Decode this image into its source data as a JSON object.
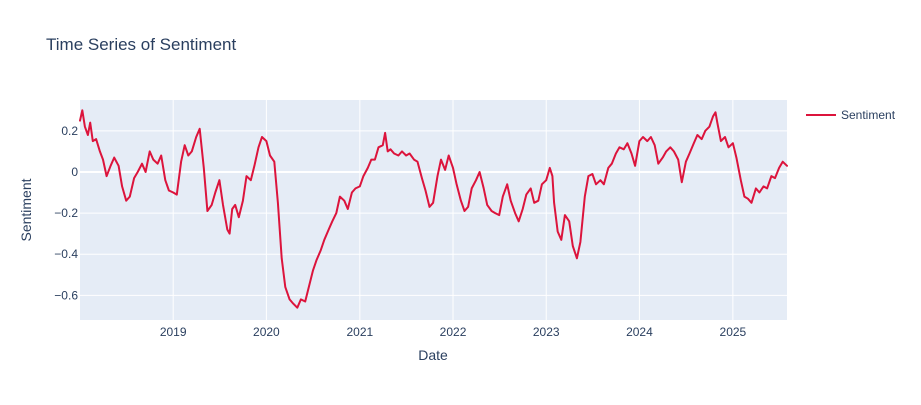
{
  "chart_data": {
    "type": "line",
    "title": "Time Series of Sentiment",
    "xlabel": "Date",
    "ylabel": "Sentiment",
    "xlim": [
      "2018-01-01",
      "2025-08-01"
    ],
    "ylim": [
      -0.72,
      0.35
    ],
    "x_ticks": [
      "2019-01-01",
      "2020-01-01",
      "2021-01-01",
      "2022-01-01",
      "2023-01-01",
      "2024-01-01",
      "2025-01-01"
    ],
    "x_tick_labels": [
      "2019",
      "2020",
      "2021",
      "2022",
      "2023",
      "2024",
      "2025"
    ],
    "y_ticks": [
      0.2,
      0,
      -0.2,
      -0.4,
      -0.6
    ],
    "y_tick_labels": [
      "0.2",
      "0",
      "−0.2",
      "−0.4",
      "−0.6"
    ],
    "grid": true,
    "legend": "right",
    "plot_bg": "#E5ECF6",
    "series": [
      {
        "name": "Sentiment",
        "color": "#DC143C",
        "points": [
          [
            "2018-01-01",
            0.25
          ],
          [
            "2018-01-10",
            0.3
          ],
          [
            "2018-01-20",
            0.22
          ],
          [
            "2018-02-01",
            0.18
          ],
          [
            "2018-02-10",
            0.24
          ],
          [
            "2018-02-20",
            0.15
          ],
          [
            "2018-03-05",
            0.16
          ],
          [
            "2018-03-20",
            0.1
          ],
          [
            "2018-04-01",
            0.06
          ],
          [
            "2018-04-15",
            -0.02
          ],
          [
            "2018-05-01",
            0.03
          ],
          [
            "2018-05-15",
            0.07
          ],
          [
            "2018-06-01",
            0.03
          ],
          [
            "2018-06-15",
            -0.07
          ],
          [
            "2018-07-01",
            -0.14
          ],
          [
            "2018-07-15",
            -0.12
          ],
          [
            "2018-08-01",
            -0.03
          ],
          [
            "2018-08-15",
            0.0
          ],
          [
            "2018-09-01",
            0.04
          ],
          [
            "2018-09-15",
            0.0
          ],
          [
            "2018-10-01",
            0.1
          ],
          [
            "2018-10-15",
            0.06
          ],
          [
            "2018-11-01",
            0.04
          ],
          [
            "2018-11-15",
            0.08
          ],
          [
            "2018-12-01",
            -0.04
          ],
          [
            "2018-12-15",
            -0.09
          ],
          [
            "2019-01-01",
            -0.1
          ],
          [
            "2019-01-15",
            -0.11
          ],
          [
            "2019-02-01",
            0.05
          ],
          [
            "2019-02-15",
            0.13
          ],
          [
            "2019-03-01",
            0.08
          ],
          [
            "2019-03-15",
            0.1
          ],
          [
            "2019-04-01",
            0.17
          ],
          [
            "2019-04-15",
            0.21
          ],
          [
            "2019-05-01",
            0.02
          ],
          [
            "2019-05-15",
            -0.19
          ],
          [
            "2019-06-01",
            -0.16
          ],
          [
            "2019-06-15",
            -0.1
          ],
          [
            "2019-07-01",
            -0.04
          ],
          [
            "2019-07-15",
            -0.16
          ],
          [
            "2019-08-01",
            -0.28
          ],
          [
            "2019-08-10",
            -0.3
          ],
          [
            "2019-08-20",
            -0.18
          ],
          [
            "2019-09-01",
            -0.16
          ],
          [
            "2019-09-15",
            -0.22
          ],
          [
            "2019-10-01",
            -0.14
          ],
          [
            "2019-10-15",
            -0.02
          ],
          [
            "2019-11-01",
            -0.04
          ],
          [
            "2019-11-15",
            0.03
          ],
          [
            "2019-12-01",
            0.12
          ],
          [
            "2019-12-15",
            0.17
          ],
          [
            "2020-01-01",
            0.15
          ],
          [
            "2020-01-15",
            0.08
          ],
          [
            "2020-02-01",
            0.05
          ],
          [
            "2020-02-15",
            -0.15
          ],
          [
            "2020-03-01",
            -0.42
          ],
          [
            "2020-03-15",
            -0.56
          ],
          [
            "2020-04-01",
            -0.62
          ],
          [
            "2020-04-15",
            -0.64
          ],
          [
            "2020-05-01",
            -0.66
          ],
          [
            "2020-05-15",
            -0.62
          ],
          [
            "2020-06-01",
            -0.63
          ],
          [
            "2020-06-15",
            -0.56
          ],
          [
            "2020-07-01",
            -0.48
          ],
          [
            "2020-07-15",
            -0.43
          ],
          [
            "2020-08-01",
            -0.38
          ],
          [
            "2020-08-15",
            -0.33
          ],
          [
            "2020-09-01",
            -0.28
          ],
          [
            "2020-09-15",
            -0.24
          ],
          [
            "2020-10-01",
            -0.2
          ],
          [
            "2020-10-15",
            -0.12
          ],
          [
            "2020-11-01",
            -0.14
          ],
          [
            "2020-11-15",
            -0.18
          ],
          [
            "2020-12-01",
            -0.1
          ],
          [
            "2020-12-15",
            -0.08
          ],
          [
            "2021-01-01",
            -0.07
          ],
          [
            "2021-01-15",
            -0.02
          ],
          [
            "2021-02-01",
            0.02
          ],
          [
            "2021-02-15",
            0.06
          ],
          [
            "2021-03-01",
            0.06
          ],
          [
            "2021-03-15",
            0.12
          ],
          [
            "2021-04-01",
            0.13
          ],
          [
            "2021-04-10",
            0.19
          ],
          [
            "2021-04-20",
            0.1
          ],
          [
            "2021-05-01",
            0.11
          ],
          [
            "2021-05-15",
            0.09
          ],
          [
            "2021-06-01",
            0.08
          ],
          [
            "2021-06-15",
            0.1
          ],
          [
            "2021-07-01",
            0.08
          ],
          [
            "2021-07-15",
            0.09
          ],
          [
            "2021-08-01",
            0.06
          ],
          [
            "2021-08-15",
            0.05
          ],
          [
            "2021-09-01",
            -0.03
          ],
          [
            "2021-09-15",
            -0.09
          ],
          [
            "2021-10-01",
            -0.17
          ],
          [
            "2021-10-15",
            -0.15
          ],
          [
            "2021-11-01",
            -0.02
          ],
          [
            "2021-11-15",
            0.06
          ],
          [
            "2021-12-01",
            0.01
          ],
          [
            "2021-12-15",
            0.08
          ],
          [
            "2022-01-01",
            0.02
          ],
          [
            "2022-01-15",
            -0.06
          ],
          [
            "2022-02-01",
            -0.14
          ],
          [
            "2022-02-15",
            -0.19
          ],
          [
            "2022-03-01",
            -0.17
          ],
          [
            "2022-03-15",
            -0.08
          ],
          [
            "2022-04-01",
            -0.04
          ],
          [
            "2022-04-15",
            0.0
          ],
          [
            "2022-05-01",
            -0.08
          ],
          [
            "2022-05-15",
            -0.16
          ],
          [
            "2022-06-01",
            -0.19
          ],
          [
            "2022-06-15",
            -0.2
          ],
          [
            "2022-07-01",
            -0.21
          ],
          [
            "2022-07-15",
            -0.12
          ],
          [
            "2022-08-01",
            -0.06
          ],
          [
            "2022-08-15",
            -0.14
          ],
          [
            "2022-09-01",
            -0.2
          ],
          [
            "2022-09-15",
            -0.24
          ],
          [
            "2022-10-01",
            -0.18
          ],
          [
            "2022-10-15",
            -0.11
          ],
          [
            "2022-11-01",
            -0.08
          ],
          [
            "2022-11-15",
            -0.15
          ],
          [
            "2022-12-01",
            -0.14
          ],
          [
            "2022-12-15",
            -0.06
          ],
          [
            "2023-01-01",
            -0.04
          ],
          [
            "2023-01-15",
            0.02
          ],
          [
            "2023-01-25",
            -0.02
          ],
          [
            "2023-02-01",
            -0.15
          ],
          [
            "2023-02-15",
            -0.29
          ],
          [
            "2023-03-01",
            -0.33
          ],
          [
            "2023-03-15",
            -0.21
          ],
          [
            "2023-04-01",
            -0.24
          ],
          [
            "2023-04-15",
            -0.36
          ],
          [
            "2023-05-01",
            -0.42
          ],
          [
            "2023-05-15",
            -0.34
          ],
          [
            "2023-06-01",
            -0.12
          ],
          [
            "2023-06-15",
            -0.02
          ],
          [
            "2023-07-01",
            -0.01
          ],
          [
            "2023-07-15",
            -0.06
          ],
          [
            "2023-08-01",
            -0.04
          ],
          [
            "2023-08-15",
            -0.06
          ],
          [
            "2023-09-01",
            0.02
          ],
          [
            "2023-09-15",
            0.04
          ],
          [
            "2023-10-01",
            0.09
          ],
          [
            "2023-10-15",
            0.12
          ],
          [
            "2023-11-01",
            0.11
          ],
          [
            "2023-11-15",
            0.14
          ],
          [
            "2023-12-01",
            0.09
          ],
          [
            "2023-12-15",
            0.03
          ],
          [
            "2024-01-01",
            0.15
          ],
          [
            "2024-01-15",
            0.17
          ],
          [
            "2024-02-01",
            0.15
          ],
          [
            "2024-02-15",
            0.17
          ],
          [
            "2024-03-01",
            0.13
          ],
          [
            "2024-03-15",
            0.04
          ],
          [
            "2024-04-01",
            0.07
          ],
          [
            "2024-04-15",
            0.1
          ],
          [
            "2024-05-01",
            0.12
          ],
          [
            "2024-05-15",
            0.1
          ],
          [
            "2024-06-01",
            0.06
          ],
          [
            "2024-06-15",
            -0.05
          ],
          [
            "2024-07-01",
            0.05
          ],
          [
            "2024-07-15",
            0.09
          ],
          [
            "2024-08-01",
            0.14
          ],
          [
            "2024-08-15",
            0.18
          ],
          [
            "2024-09-01",
            0.16
          ],
          [
            "2024-09-15",
            0.2
          ],
          [
            "2024-10-01",
            0.22
          ],
          [
            "2024-10-15",
            0.27
          ],
          [
            "2024-10-25",
            0.29
          ],
          [
            "2024-11-01",
            0.24
          ],
          [
            "2024-11-15",
            0.15
          ],
          [
            "2024-12-01",
            0.17
          ],
          [
            "2024-12-15",
            0.12
          ],
          [
            "2025-01-01",
            0.14
          ],
          [
            "2025-01-15",
            0.07
          ],
          [
            "2025-02-01",
            -0.04
          ],
          [
            "2025-02-15",
            -0.12
          ],
          [
            "2025-03-01",
            -0.13
          ],
          [
            "2025-03-15",
            -0.15
          ],
          [
            "2025-04-01",
            -0.08
          ],
          [
            "2025-04-15",
            -0.1
          ],
          [
            "2025-05-01",
            -0.07
          ],
          [
            "2025-05-15",
            -0.08
          ],
          [
            "2025-06-01",
            -0.02
          ],
          [
            "2025-06-15",
            -0.03
          ],
          [
            "2025-07-01",
            0.02
          ],
          [
            "2025-07-15",
            0.05
          ],
          [
            "2025-08-01",
            0.03
          ]
        ]
      }
    ]
  }
}
